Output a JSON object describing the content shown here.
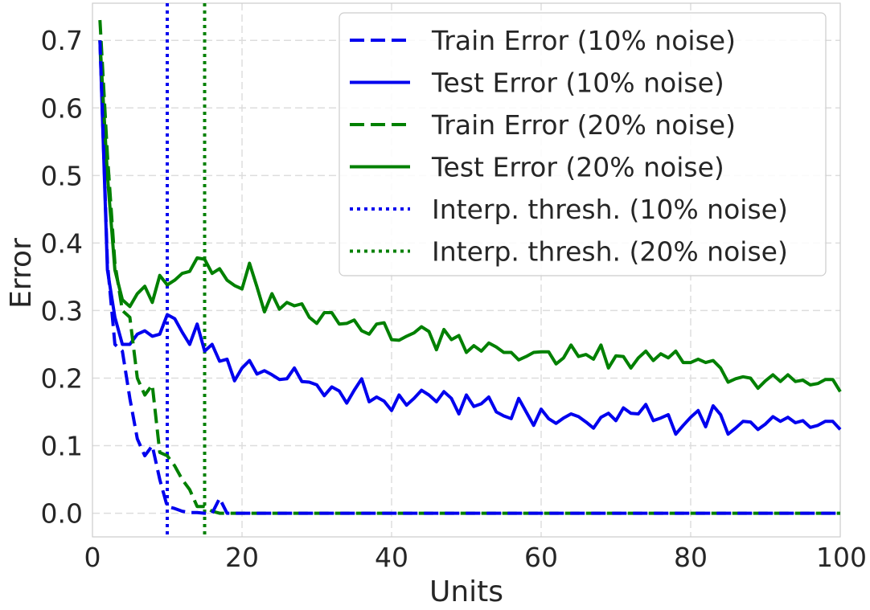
{
  "chart_data": {
    "type": "line",
    "title": "",
    "xlabel": "Units",
    "ylabel": "Error",
    "xlim": [
      0,
      100
    ],
    "ylim": [
      -0.035,
      0.755
    ],
    "xticks": [
      0,
      20,
      40,
      60,
      80,
      100
    ],
    "xtick_labels": [
      "0",
      "20",
      "40",
      "60",
      "80",
      "100"
    ],
    "yticks": [
      0.0,
      0.1,
      0.2,
      0.3,
      0.4,
      0.5,
      0.6,
      0.7
    ],
    "ytick_labels": [
      "0.0",
      "0.1",
      "0.2",
      "0.3",
      "0.4",
      "0.5",
      "0.6",
      "0.7"
    ],
    "grid": true,
    "legend_position": "top-right",
    "x": [
      1,
      2,
      3,
      4,
      5,
      6,
      7,
      8,
      9,
      10,
      11,
      12,
      13,
      14,
      15,
      16,
      17,
      18,
      19,
      20,
      21,
      22,
      23,
      24,
      25,
      26,
      27,
      28,
      29,
      30,
      31,
      32,
      33,
      34,
      35,
      36,
      37,
      38,
      39,
      40,
      41,
      42,
      43,
      44,
      45,
      46,
      47,
      48,
      49,
      50,
      51,
      52,
      53,
      54,
      55,
      56,
      57,
      58,
      59,
      60,
      61,
      62,
      63,
      64,
      65,
      66,
      67,
      68,
      69,
      70,
      71,
      72,
      73,
      74,
      75,
      76,
      77,
      78,
      79,
      80,
      81,
      82,
      83,
      84,
      85,
      86,
      87,
      88,
      89,
      90,
      91,
      92,
      93,
      94,
      95,
      96,
      97,
      98,
      99,
      100
    ],
    "series": [
      {
        "name": "Train Error (10% noise)",
        "color": "#0000ee",
        "style": "dashed",
        "values": [
          0.7,
          0.37,
          0.25,
          0.24,
          0.17,
          0.11,
          0.085,
          0.1,
          0.05,
          0.01,
          0.007,
          0.003,
          0.001,
          0.001,
          0.0,
          0.0,
          0.022,
          0.0,
          0.0,
          0.0,
          0.0,
          0.0,
          0.0,
          0.0,
          0.0,
          0.0,
          0.0,
          0.0,
          0.0,
          0.0,
          0.0,
          0.0,
          0.0,
          0.0,
          0.0,
          0.0,
          0.0,
          0.0,
          0.0,
          0.0,
          0.0,
          0.0,
          0.0,
          0.0,
          0.0,
          0.0,
          0.0,
          0.0,
          0.0,
          0.0,
          0.0,
          0.0,
          0.0,
          0.0,
          0.0,
          0.0,
          0.0,
          0.0,
          0.0,
          0.0,
          0.0,
          0.0,
          0.0,
          0.0,
          0.0,
          0.0,
          0.0,
          0.0,
          0.0,
          0.0,
          0.0,
          0.0,
          0.0,
          0.0,
          0.0,
          0.0,
          0.0,
          0.0,
          0.0,
          0.0,
          0.0,
          0.0,
          0.0,
          0.0,
          0.0,
          0.0,
          0.0,
          0.0,
          0.0,
          0.0,
          0.0,
          0.0,
          0.0,
          0.0,
          0.0,
          0.0,
          0.0,
          0.0,
          0.0,
          0.0
        ]
      },
      {
        "name": "Test Error (10% noise)",
        "color": "#0000ee",
        "style": "solid",
        "values": [
          0.7,
          0.36,
          0.29,
          0.25,
          0.25,
          0.265,
          0.27,
          0.262,
          0.265,
          0.294,
          0.288,
          0.268,
          0.25,
          0.28,
          0.24,
          0.25,
          0.225,
          0.228,
          0.196,
          0.215,
          0.226,
          0.206,
          0.211,
          0.205,
          0.198,
          0.199,
          0.215,
          0.195,
          0.194,
          0.19,
          0.174,
          0.187,
          0.181,
          0.163,
          0.182,
          0.199,
          0.165,
          0.172,
          0.166,
          0.152,
          0.175,
          0.16,
          0.17,
          0.182,
          0.175,
          0.165,
          0.18,
          0.17,
          0.147,
          0.175,
          0.158,
          0.162,
          0.172,
          0.15,
          0.144,
          0.14,
          0.17,
          0.15,
          0.13,
          0.154,
          0.14,
          0.133,
          0.141,
          0.147,
          0.143,
          0.135,
          0.126,
          0.142,
          0.148,
          0.137,
          0.156,
          0.148,
          0.147,
          0.161,
          0.137,
          0.141,
          0.146,
          0.117,
          0.13,
          0.142,
          0.152,
          0.128,
          0.159,
          0.146,
          0.117,
          0.126,
          0.136,
          0.135,
          0.124,
          0.132,
          0.143,
          0.136,
          0.142,
          0.134,
          0.137,
          0.127,
          0.13,
          0.136,
          0.136,
          0.124
        ]
      },
      {
        "name": "Train Error (20% noise)",
        "color": "#008000",
        "style": "dashed",
        "values": [
          0.73,
          0.53,
          0.37,
          0.3,
          0.29,
          0.2,
          0.175,
          0.19,
          0.09,
          0.085,
          0.07,
          0.05,
          0.035,
          0.01,
          0.01,
          0.003,
          0.0,
          0.0,
          0.0,
          0.0,
          0.0,
          0.0,
          0.0,
          0.0,
          0.0,
          0.0,
          0.0,
          0.0,
          0.0,
          0.0,
          0.0,
          0.0,
          0.0,
          0.0,
          0.0,
          0.0,
          0.0,
          0.0,
          0.0,
          0.0,
          0.0,
          0.0,
          0.0,
          0.0,
          0.0,
          0.0,
          0.0,
          0.0,
          0.0,
          0.0,
          0.0,
          0.0,
          0.0,
          0.0,
          0.0,
          0.0,
          0.0,
          0.0,
          0.0,
          0.0,
          0.0,
          0.0,
          0.0,
          0.0,
          0.0,
          0.0,
          0.0,
          0.0,
          0.0,
          0.0,
          0.0,
          0.0,
          0.0,
          0.0,
          0.0,
          0.0,
          0.0,
          0.0,
          0.0,
          0.0,
          0.0,
          0.0,
          0.0,
          0.0,
          0.0,
          0.0,
          0.0,
          0.0,
          0.0,
          0.0,
          0.0,
          0.0,
          0.0,
          0.0,
          0.0,
          0.0,
          0.0,
          0.0,
          0.0,
          0.0
        ]
      },
      {
        "name": "Test Error (20% noise)",
        "color": "#008000",
        "style": "solid",
        "values": [
          0.7,
          0.5,
          0.36,
          0.316,
          0.306,
          0.325,
          0.336,
          0.312,
          0.352,
          0.338,
          0.345,
          0.355,
          0.358,
          0.378,
          0.376,
          0.355,
          0.362,
          0.345,
          0.337,
          0.332,
          0.37,
          0.335,
          0.298,
          0.325,
          0.302,
          0.312,
          0.307,
          0.31,
          0.29,
          0.281,
          0.297,
          0.297,
          0.28,
          0.281,
          0.286,
          0.27,
          0.265,
          0.28,
          0.282,
          0.257,
          0.256,
          0.262,
          0.267,
          0.276,
          0.269,
          0.242,
          0.272,
          0.257,
          0.263,
          0.238,
          0.248,
          0.24,
          0.252,
          0.246,
          0.238,
          0.238,
          0.227,
          0.232,
          0.238,
          0.239,
          0.239,
          0.221,
          0.23,
          0.249,
          0.232,
          0.235,
          0.228,
          0.249,
          0.215,
          0.233,
          0.232,
          0.215,
          0.23,
          0.24,
          0.226,
          0.236,
          0.23,
          0.24,
          0.223,
          0.223,
          0.228,
          0.223,
          0.226,
          0.215,
          0.194,
          0.199,
          0.202,
          0.2,
          0.185,
          0.196,
          0.205,
          0.195,
          0.205,
          0.195,
          0.197,
          0.19,
          0.192,
          0.198,
          0.198,
          0.18
        ]
      },
      {
        "name": "Interp. thresh. (10% noise)",
        "color": "#0000ee",
        "style": "dotted",
        "vline": 10
      },
      {
        "name": "Interp. thresh. (20% noise)",
        "color": "#008000",
        "style": "dotted",
        "vline": 15
      }
    ]
  }
}
